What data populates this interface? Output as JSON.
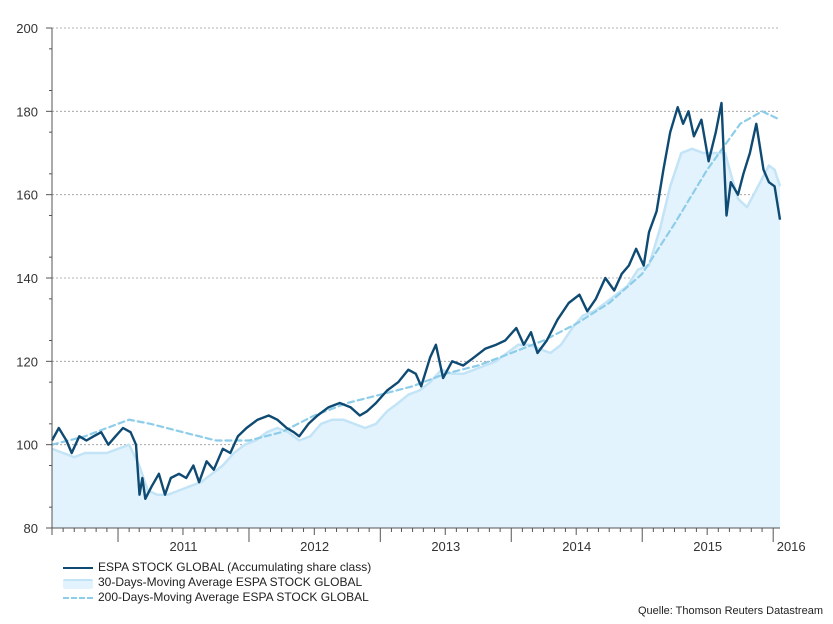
{
  "chart_data": {
    "type": "line",
    "title": "",
    "xlabel": "",
    "ylabel": "",
    "ylim": [
      80,
      200
    ],
    "xlim": [
      "2010-07-01",
      "2016-01-20"
    ],
    "y_ticks": [
      "80",
      "100",
      "120",
      "140",
      "160",
      "180",
      "200"
    ],
    "x_ticks": [
      "2011",
      "2012",
      "2013",
      "2014",
      "2015",
      "2016"
    ],
    "grid": "horizontal-dashed",
    "legend": "bottom-left",
    "colors": {
      "price": "#0e4a72",
      "ma30_fill": "#e3f3fd",
      "ma30_line": "#c3e4f7",
      "ma200": "#8ecde9"
    },
    "series": [
      {
        "name": "ESPA STOCK GLOBAL (Accumulating share class)",
        "style": "solid-line",
        "points": [
          [
            "2010-07-01",
            101
          ],
          [
            "2010-07-20",
            104
          ],
          [
            "2010-08-10",
            101
          ],
          [
            "2010-08-25",
            98
          ],
          [
            "2010-09-15",
            102
          ],
          [
            "2010-10-05",
            101
          ],
          [
            "2010-10-25",
            102
          ],
          [
            "2010-11-15",
            103
          ],
          [
            "2010-12-05",
            100
          ],
          [
            "2010-12-25",
            102
          ],
          [
            "2011-01-15",
            104
          ],
          [
            "2011-02-05",
            103
          ],
          [
            "2011-02-20",
            100
          ],
          [
            "2011-03-02",
            88
          ],
          [
            "2011-03-10",
            92
          ],
          [
            "2011-03-18",
            87
          ],
          [
            "2011-04-05",
            90
          ],
          [
            "2011-04-25",
            93
          ],
          [
            "2011-05-12",
            88
          ],
          [
            "2011-05-28",
            92
          ],
          [
            "2011-06-20",
            93
          ],
          [
            "2011-07-10",
            92
          ],
          [
            "2011-07-30",
            95
          ],
          [
            "2011-08-15",
            91
          ],
          [
            "2011-09-05",
            96
          ],
          [
            "2011-09-25",
            94
          ],
          [
            "2011-10-20",
            99
          ],
          [
            "2011-11-10",
            98
          ],
          [
            "2011-12-01",
            102
          ],
          [
            "2011-12-25",
            104
          ],
          [
            "2012-01-25",
            106
          ],
          [
            "2012-02-25",
            107
          ],
          [
            "2012-03-20",
            106
          ],
          [
            "2012-04-15",
            104
          ],
          [
            "2012-05-05",
            103
          ],
          [
            "2012-05-20",
            102
          ],
          [
            "2012-06-15",
            105
          ],
          [
            "2012-07-10",
            107
          ],
          [
            "2012-08-10",
            109
          ],
          [
            "2012-09-10",
            110
          ],
          [
            "2012-10-10",
            109
          ],
          [
            "2012-11-05",
            107
          ],
          [
            "2012-11-25",
            108
          ],
          [
            "2012-12-20",
            110
          ],
          [
            "2013-01-20",
            113
          ],
          [
            "2013-02-20",
            115
          ],
          [
            "2013-03-20",
            118
          ],
          [
            "2013-04-10",
            117
          ],
          [
            "2013-04-25",
            114
          ],
          [
            "2013-05-20",
            121
          ],
          [
            "2013-06-05",
            124
          ],
          [
            "2013-06-25",
            116
          ],
          [
            "2013-07-20",
            120
          ],
          [
            "2013-08-20",
            119
          ],
          [
            "2013-09-20",
            121
          ],
          [
            "2013-10-20",
            123
          ],
          [
            "2013-11-20",
            124
          ],
          [
            "2013-12-15",
            125
          ],
          [
            "2014-01-15",
            128
          ],
          [
            "2014-02-05",
            124
          ],
          [
            "2014-02-25",
            127
          ],
          [
            "2014-03-15",
            122
          ],
          [
            "2014-04-10",
            125
          ],
          [
            "2014-05-10",
            130
          ],
          [
            "2014-06-10",
            134
          ],
          [
            "2014-07-10",
            136
          ],
          [
            "2014-08-01",
            132
          ],
          [
            "2014-08-25",
            135
          ],
          [
            "2014-09-20",
            140
          ],
          [
            "2014-10-15",
            137
          ],
          [
            "2014-11-05",
            141
          ],
          [
            "2014-11-25",
            143
          ],
          [
            "2014-12-15",
            147
          ],
          [
            "2015-01-05",
            143
          ],
          [
            "2015-01-20",
            151
          ],
          [
            "2015-02-10",
            156
          ],
          [
            "2015-03-01",
            166
          ],
          [
            "2015-03-20",
            175
          ],
          [
            "2015-04-10",
            181
          ],
          [
            "2015-04-25",
            177
          ],
          [
            "2015-05-10",
            180
          ],
          [
            "2015-05-25",
            174
          ],
          [
            "2015-06-15",
            178
          ],
          [
            "2015-07-05",
            168
          ],
          [
            "2015-07-25",
            175
          ],
          [
            "2015-08-10",
            182
          ],
          [
            "2015-08-24",
            155
          ],
          [
            "2015-09-05",
            163
          ],
          [
            "2015-09-25",
            160
          ],
          [
            "2015-10-10",
            165
          ],
          [
            "2015-10-28",
            170
          ],
          [
            "2015-11-15",
            177
          ],
          [
            "2015-12-05",
            166
          ],
          [
            "2015-12-20",
            163
          ],
          [
            "2016-01-05",
            162
          ],
          [
            "2016-01-20",
            154
          ]
        ]
      },
      {
        "name": "30-Days-Moving Average ESPA STOCK GLOBAL",
        "style": "area",
        "points": [
          [
            "2010-07-01",
            99
          ],
          [
            "2010-08-01",
            98
          ],
          [
            "2010-09-01",
            97
          ],
          [
            "2010-10-01",
            98
          ],
          [
            "2010-11-01",
            98
          ],
          [
            "2010-12-01",
            98
          ],
          [
            "2011-01-01",
            99
          ],
          [
            "2011-02-01",
            100
          ],
          [
            "2011-03-01",
            95
          ],
          [
            "2011-03-25",
            89
          ],
          [
            "2011-04-20",
            88
          ],
          [
            "2011-05-20",
            88
          ],
          [
            "2011-06-20",
            89
          ],
          [
            "2011-07-20",
            90
          ],
          [
            "2011-08-20",
            91
          ],
          [
            "2011-09-20",
            93
          ],
          [
            "2011-10-20",
            95
          ],
          [
            "2011-11-20",
            98
          ],
          [
            "2011-12-20",
            100
          ],
          [
            "2012-01-20",
            101
          ],
          [
            "2012-02-20",
            103
          ],
          [
            "2012-03-20",
            104
          ],
          [
            "2012-04-20",
            103
          ],
          [
            "2012-05-20",
            101
          ],
          [
            "2012-06-20",
            102
          ],
          [
            "2012-07-20",
            105
          ],
          [
            "2012-08-20",
            106
          ],
          [
            "2012-09-20",
            106
          ],
          [
            "2012-10-20",
            105
          ],
          [
            "2012-11-20",
            104
          ],
          [
            "2012-12-20",
            105
          ],
          [
            "2013-01-20",
            108
          ],
          [
            "2013-02-20",
            110
          ],
          [
            "2013-03-20",
            112
          ],
          [
            "2013-04-20",
            113
          ],
          [
            "2013-05-20",
            115
          ],
          [
            "2013-06-20",
            118
          ],
          [
            "2013-07-20",
            117
          ],
          [
            "2013-08-20",
            117
          ],
          [
            "2013-09-20",
            118
          ],
          [
            "2013-10-20",
            119
          ],
          [
            "2013-11-20",
            120
          ],
          [
            "2013-12-20",
            122
          ],
          [
            "2014-01-20",
            124
          ],
          [
            "2014-02-20",
            124
          ],
          [
            "2014-03-20",
            123
          ],
          [
            "2014-04-20",
            122
          ],
          [
            "2014-05-20",
            124
          ],
          [
            "2014-06-20",
            128
          ],
          [
            "2014-07-20",
            131
          ],
          [
            "2014-08-20",
            132
          ],
          [
            "2014-09-20",
            134
          ],
          [
            "2014-10-20",
            136
          ],
          [
            "2014-11-20",
            138
          ],
          [
            "2014-12-20",
            142
          ],
          [
            "2015-01-20",
            143
          ],
          [
            "2015-02-20",
            152
          ],
          [
            "2015-03-20",
            162
          ],
          [
            "2015-04-20",
            170
          ],
          [
            "2015-05-20",
            171
          ],
          [
            "2015-06-20",
            170
          ],
          [
            "2015-07-20",
            170
          ],
          [
            "2015-08-20",
            170
          ],
          [
            "2015-09-05",
            165
          ],
          [
            "2015-09-25",
            159
          ],
          [
            "2015-10-20",
            157
          ],
          [
            "2015-11-20",
            162
          ],
          [
            "2015-12-20",
            167
          ],
          [
            "2016-01-05",
            166
          ],
          [
            "2016-01-20",
            162
          ]
        ]
      },
      {
        "name": "200-Days-Moving Average ESPA STOCK GLOBAL",
        "style": "dashed-line",
        "points": [
          [
            "2010-07-01",
            100
          ],
          [
            "2010-10-01",
            102
          ],
          [
            "2011-01-01",
            105
          ],
          [
            "2011-02-01",
            106
          ],
          [
            "2011-04-01",
            105
          ],
          [
            "2011-07-01",
            103
          ],
          [
            "2011-10-01",
            101
          ],
          [
            "2012-01-01",
            101
          ],
          [
            "2012-04-01",
            103
          ],
          [
            "2012-07-01",
            107
          ],
          [
            "2012-10-01",
            110
          ],
          [
            "2013-01-01",
            112
          ],
          [
            "2013-04-01",
            114
          ],
          [
            "2013-07-01",
            117
          ],
          [
            "2013-10-01",
            119
          ],
          [
            "2014-01-01",
            122
          ],
          [
            "2014-04-01",
            125
          ],
          [
            "2014-07-01",
            129
          ],
          [
            "2014-10-01",
            134
          ],
          [
            "2015-01-01",
            141
          ],
          [
            "2015-04-01",
            153
          ],
          [
            "2015-07-01",
            166
          ],
          [
            "2015-10-01",
            177
          ],
          [
            "2015-12-01",
            180
          ],
          [
            "2016-01-20",
            178
          ]
        ]
      }
    ],
    "source": "Quelle: Thomson Reuters Datastream"
  }
}
